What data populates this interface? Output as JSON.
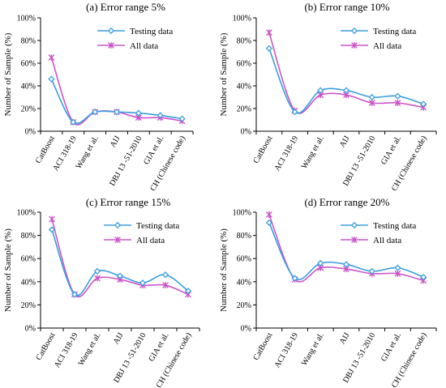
{
  "chart_data": [
    {
      "type": "line",
      "title": "(a) Error range 5%",
      "ylabel": "Number of Sample (%)",
      "ylim": [
        0,
        100
      ],
      "yticks": [
        "0%",
        "20%",
        "40%",
        "60%",
        "80%",
        "100%"
      ],
      "categories": [
        "CatBoost",
        "ACI 318-19",
        "Wang et al.",
        "AIJ",
        "DBJ 13 -51-2010",
        "GIA et al.",
        "CH (Chinese code)"
      ],
      "legend_position": "top-right",
      "series": [
        {
          "name": "Testing data",
          "values": [
            46,
            8,
            17,
            17,
            16,
            14,
            11
          ]
        },
        {
          "name": "All data",
          "values": [
            65,
            8,
            17,
            17,
            12,
            12,
            9
          ]
        }
      ]
    },
    {
      "type": "line",
      "title": "(b) Error range 10%",
      "ylabel": "Number of Sample (%)",
      "ylim": [
        0,
        100
      ],
      "yticks": [
        "0%",
        "20%",
        "40%",
        "60%",
        "80%",
        "100%"
      ],
      "categories": [
        "CatBoost",
        "ACI 318-19",
        "Wang et al.",
        "AIJ",
        "DBJ 13 -51-2010",
        "GIA et al.",
        "CH (Chinese code)"
      ],
      "legend_position": "top-right",
      "series": [
        {
          "name": "Testing data",
          "values": [
            73,
            17,
            36,
            36,
            30,
            31,
            24
          ]
        },
        {
          "name": "All data",
          "values": [
            87,
            18,
            32,
            32,
            25,
            25,
            21
          ]
        }
      ]
    },
    {
      "type": "line",
      "title": "(c) Error range 15%",
      "ylabel": "Number of Sample (%)",
      "ylim": [
        0,
        100
      ],
      "yticks": [
        "0%",
        "20%",
        "40%",
        "60%",
        "80%",
        "100%"
      ],
      "categories": [
        "CatBoost",
        "ACI 318-19",
        "Wang et al.",
        "AIJ",
        "DBJ 13 -51-2010",
        "GIA et al.",
        "CH (Chinese code)"
      ],
      "legend_position": "top-right",
      "series": [
        {
          "name": "Testing data",
          "values": [
            85,
            29,
            49,
            45,
            39,
            46,
            32
          ]
        },
        {
          "name": "All data",
          "values": [
            94,
            29,
            43,
            42,
            37,
            37,
            29
          ]
        }
      ]
    },
    {
      "type": "line",
      "title": "(d) Error range 20%",
      "ylabel": "Number of Sample (%)",
      "ylim": [
        0,
        100
      ],
      "yticks": [
        "0%",
        "20%",
        "40%",
        "60%",
        "80%",
        "100%"
      ],
      "categories": [
        "CatBoost",
        "ACI 318-19",
        "Wang et al.",
        "AIJ",
        "DBJ 13 -51-2010",
        "GIA et al.",
        "CH (Chinese code)"
      ],
      "legend_position": "top-right",
      "series": [
        {
          "name": "Testing data",
          "values": [
            91,
            43,
            56,
            55,
            49,
            52,
            44
          ]
        },
        {
          "name": "All data",
          "values": [
            98,
            42,
            52,
            51,
            47,
            47,
            41
          ]
        }
      ]
    }
  ],
  "colors": {
    "testing": "#3a9ee0",
    "all": "#cc55c8",
    "axis": "#000000"
  },
  "markers": {
    "testing": "diamond",
    "all": "x-star"
  }
}
